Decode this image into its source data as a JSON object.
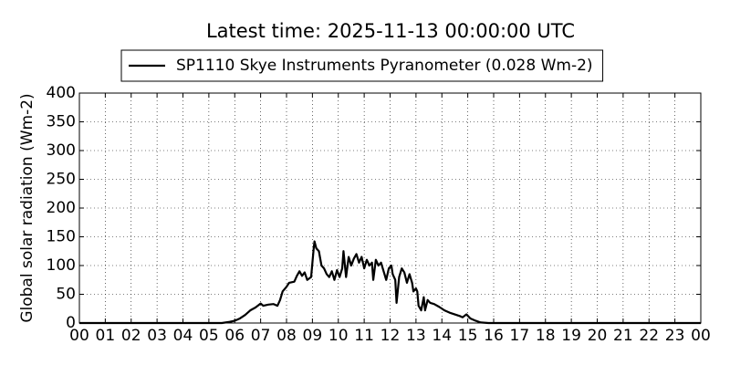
{
  "chart_data": {
    "type": "line",
    "title": "Latest time: 2025-11-13 00:00:00 UTC",
    "y_label": "Global solar radiation (Wm-2)",
    "x": [
      0,
      5,
      5.5,
      5.8,
      6.0,
      6.2,
      6.4,
      6.6,
      6.8,
      7.0,
      7.1,
      7.3,
      7.5,
      7.65,
      7.75,
      7.85,
      8.0,
      8.1,
      8.3,
      8.4,
      8.5,
      8.6,
      8.7,
      8.8,
      8.95,
      9.05,
      9.08,
      9.15,
      9.25,
      9.35,
      9.45,
      9.55,
      9.65,
      9.75,
      9.85,
      9.95,
      10.05,
      10.15,
      10.2,
      10.3,
      10.4,
      10.5,
      10.6,
      10.7,
      10.8,
      10.9,
      11.0,
      11.1,
      11.2,
      11.3,
      11.35,
      11.45,
      11.55,
      11.65,
      11.75,
      11.85,
      11.95,
      12.05,
      12.1,
      12.2,
      12.25,
      12.35,
      12.45,
      12.55,
      12.65,
      12.75,
      12.85,
      12.9,
      13.0,
      13.05,
      13.1,
      13.2,
      13.3,
      13.35,
      13.45,
      13.55,
      13.7,
      13.9,
      14.1,
      14.3,
      14.5,
      14.7,
      14.8,
      14.95,
      15.1,
      15.3,
      15.5,
      15.8,
      24
    ],
    "series": [
      {
        "name": "SP1110 Skye Instruments Pyranometer (0.028 Wm-2)",
        "color": "#000000",
        "values": [
          0,
          0,
          0,
          2,
          4,
          8,
          14,
          22,
          27,
          34,
          30,
          32,
          33,
          30,
          40,
          55,
          63,
          70,
          72,
          82,
          90,
          82,
          88,
          75,
          80,
          130,
          142,
          130,
          125,
          100,
          95,
          85,
          80,
          90,
          75,
          92,
          80,
          95,
          125,
          80,
          115,
          100,
          112,
          120,
          105,
          115,
          95,
          110,
          100,
          105,
          75,
          110,
          100,
          105,
          90,
          75,
          95,
          100,
          85,
          75,
          35,
          80,
          95,
          88,
          70,
          85,
          70,
          55,
          60,
          55,
          30,
          22,
          45,
          22,
          40,
          35,
          33,
          28,
          22,
          18,
          15,
          12,
          10,
          15,
          8,
          4,
          1,
          0,
          0
        ]
      }
    ],
    "xlim": [
      0,
      24
    ],
    "xticks": [
      {
        "value": 0,
        "label": "00"
      },
      {
        "value": 1,
        "label": "01"
      },
      {
        "value": 2,
        "label": "02"
      },
      {
        "value": 3,
        "label": "03"
      },
      {
        "value": 4,
        "label": "04"
      },
      {
        "value": 5,
        "label": "05"
      },
      {
        "value": 6,
        "label": "06"
      },
      {
        "value": 7,
        "label": "07"
      },
      {
        "value": 8,
        "label": "08"
      },
      {
        "value": 9,
        "label": "09"
      },
      {
        "value": 10,
        "label": "10"
      },
      {
        "value": 11,
        "label": "11"
      },
      {
        "value": 12,
        "label": "12"
      },
      {
        "value": 13,
        "label": "13"
      },
      {
        "value": 14,
        "label": "14"
      },
      {
        "value": 15,
        "label": "15"
      },
      {
        "value": 16,
        "label": "16"
      },
      {
        "value": 17,
        "label": "17"
      },
      {
        "value": 18,
        "label": "18"
      },
      {
        "value": 19,
        "label": "19"
      },
      {
        "value": 20,
        "label": "20"
      },
      {
        "value": 21,
        "label": "21"
      },
      {
        "value": 22,
        "label": "22"
      },
      {
        "value": 23,
        "label": "23"
      },
      {
        "value": 24,
        "label": "00"
      }
    ],
    "ylim": [
      0,
      400
    ],
    "yticks": [
      0,
      50,
      100,
      150,
      200,
      250,
      300,
      350,
      400
    ],
    "grid": true,
    "legend": "top"
  }
}
